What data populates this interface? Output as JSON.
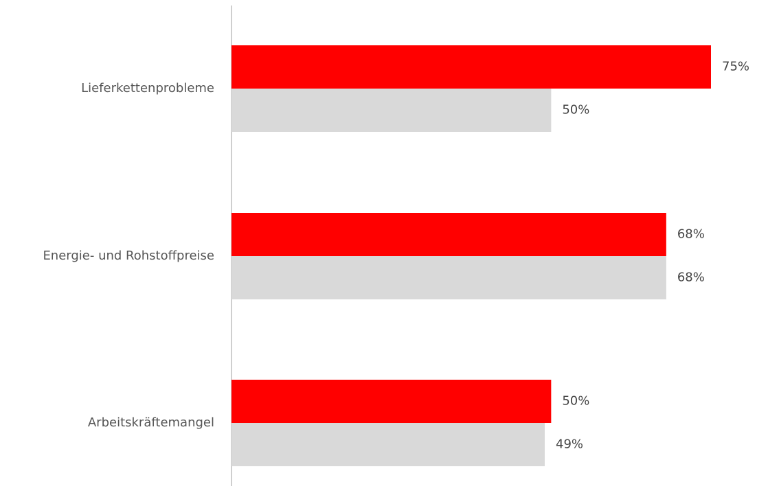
{
  "chart_data": {
    "type": "bar",
    "orientation": "horizontal",
    "categories": [
      "Lieferkettenprobleme",
      "Energie- und Rohstoffpreise",
      "Arbeitskräftemangel"
    ],
    "series": [
      {
        "color": "#ff0000",
        "values": [
          75,
          68,
          50
        ],
        "value_labels": [
          "75%",
          "68%",
          "50%"
        ]
      },
      {
        "color": "#d9d9d9",
        "values": [
          50,
          68,
          49
        ],
        "value_labels": [
          "50%",
          "68%",
          "49%"
        ]
      }
    ],
    "xlim": [
      0,
      75
    ],
    "grid": false,
    "legend": "none",
    "axis_color": "#bfbfbf"
  }
}
